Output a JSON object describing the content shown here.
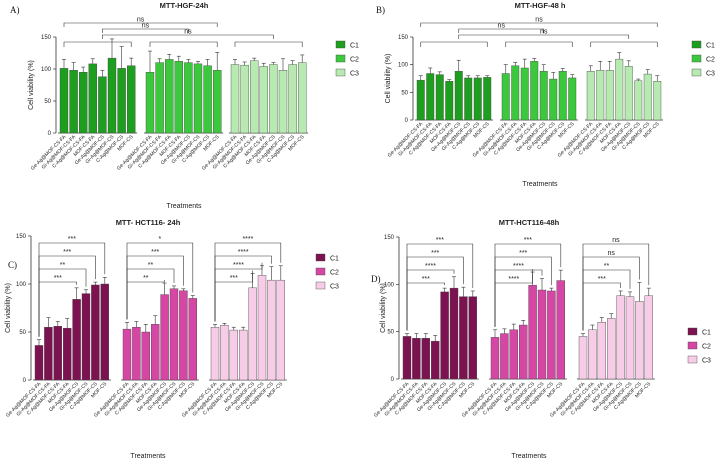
{
  "figure": {
    "ylabel": "Cell viability (%)",
    "xlabel": "Treatments",
    "categories": [
      [
        "Ge-Ag@MOF-CS-FA",
        "Gi-Ag@MOF-CS-FA",
        "C-Ag@MOF-CS-FA",
        "MOF-CS-FA",
        "Ge-Ag@MOF-CS",
        "Gi-Ag@MOF-CS",
        "C-Ag@MOF-CS",
        "MOF-CS"
      ],
      [
        "Ge-Ag@MOF-CS-FA",
        "Gi-Ag@MOF-CS-FA",
        "C-Ag@MOF-CS-FA",
        "MOF-CS-FA",
        "Ge-Ag@MOF-CS",
        "Gi-Ag@MOF-CS",
        "C-Ag@MOF-CS",
        "MOF-CS"
      ],
      [
        "Ge-Ag@MOF-CS-FA",
        "Gi-Ag@MOF-CS-FA",
        "C-Ag@MOF-CS-FA",
        "MOF-CS-FA",
        "Ge-Ag@MOF-CS",
        "Gi-Ag@MOF-CS",
        "C-Ag@MOF-CS",
        "MOF-CS"
      ],
      [
        "Ge-Ag@MOF-CS-FA",
        "Gi-Ag@MOF-CS-FA",
        "C-Ag@MOF-CS-FA",
        "MOF-CS-FA",
        "Ge-Ag@MOF-CS",
        "Gi-Ag@MOF-CS",
        "C-Ag@MOF-CS",
        "MOF-CS"
      ]
    ]
  },
  "chart_data": [
    {
      "type": "bar",
      "panel_label": "A)",
      "title": "MTT-HGF-24h",
      "xlabel": "Treatments",
      "ylabel": "Cell viability (%)",
      "ylim": [
        0,
        150
      ],
      "yticks": [
        0,
        50,
        100,
        150
      ],
      "legend": [
        "C1",
        "C2",
        "C3"
      ],
      "colors": [
        "#1e9e1e",
        "#3cc83c",
        "#b6eab0"
      ],
      "series": [
        {
          "name": "C1",
          "values": [
            101,
            98,
            95,
            108,
            88,
            117,
            101,
            105
          ],
          "errors": [
            14,
            12,
            8,
            8,
            10,
            30,
            34,
            12
          ]
        },
        {
          "name": "C2",
          "values": [
            95,
            110,
            115,
            112,
            110,
            108,
            105,
            98
          ],
          "errors": [
            33,
            6,
            8,
            8,
            5,
            4,
            10,
            28
          ]
        },
        {
          "name": "C3",
          "values": [
            107,
            106,
            113,
            104,
            107,
            98,
            107,
            110
          ],
          "errors": [
            8,
            5,
            4,
            5,
            3,
            18,
            6,
            12
          ]
        }
      ],
      "significance": [
        {
          "from": [
            0,
            0
          ],
          "to": [
            1,
            7
          ],
          "label": "ns"
        },
        {
          "from": [
            0,
            4
          ],
          "to": [
            1,
            4
          ],
          "label": "ns"
        },
        {
          "from": [
            0,
            4
          ],
          "to": [
            2,
            4
          ],
          "label": "ns"
        }
      ]
    },
    {
      "type": "bar",
      "panel_label": "B)",
      "title": "MTT-HGF-48 h",
      "xlabel": "Treatments",
      "ylabel": "Cell viability (%)",
      "ylim": [
        0,
        150
      ],
      "yticks": [
        0,
        50,
        100,
        150
      ],
      "legend": [
        "C1",
        "C2",
        "C3"
      ],
      "colors": [
        "#1e9e1e",
        "#3cc83c",
        "#b6eab0"
      ],
      "series": [
        {
          "name": "C1",
          "values": [
            72,
            84,
            82,
            70,
            88,
            76,
            76,
            77
          ],
          "errors": [
            8,
            10,
            5,
            3,
            20,
            4,
            4,
            3
          ]
        },
        {
          "name": "C2",
          "values": [
            84,
            98,
            94,
            106,
            88,
            74,
            88,
            76
          ],
          "errors": [
            16,
            6,
            16,
            5,
            12,
            12,
            5,
            6
          ]
        },
        {
          "name": "C3",
          "values": [
            88,
            90,
            90,
            110,
            97,
            71,
            83,
            70
          ],
          "errors": [
            10,
            16,
            16,
            12,
            10,
            3,
            8,
            10
          ]
        }
      ],
      "significance": [
        {
          "from": [
            0,
            0
          ],
          "to": [
            2,
            7
          ],
          "label": "ns"
        },
        {
          "from": [
            0,
            4
          ],
          "to": [
            1,
            4
          ],
          "label": "ns"
        },
        {
          "from": [
            0,
            4
          ],
          "to": [
            2,
            4
          ],
          "label": "ns"
        }
      ]
    },
    {
      "type": "bar",
      "panel_label": "C)",
      "title": "MTT- HCT116- 24h",
      "xlabel": "Treatments",
      "ylabel": "Cell viability (%)",
      "ylim": [
        0,
        150
      ],
      "yticks": [
        0,
        50,
        100,
        150
      ],
      "legend": [
        "C1",
        "C2",
        "C3"
      ],
      "colors": [
        "#7d1250",
        "#d646a4",
        "#f6cce6"
      ],
      "series": [
        {
          "name": "C1",
          "values": [
            36,
            55,
            56,
            54,
            84,
            90,
            99,
            100
          ],
          "errors": [
            6,
            10,
            5,
            10,
            12,
            4,
            3,
            7
          ]
        },
        {
          "name": "C2",
          "values": [
            53,
            55,
            50,
            58,
            89,
            95,
            93,
            85
          ],
          "errors": [
            7,
            6,
            8,
            9,
            12,
            3,
            2,
            3
          ]
        },
        {
          "name": "C3",
          "values": [
            55,
            57,
            52,
            52,
            96,
            109,
            104,
            104
          ],
          "errors": [
            3,
            2,
            3,
            3,
            15,
            10,
            14,
            15
          ]
        }
      ],
      "significance": [
        {
          "from": [
            0,
            0
          ],
          "to": [
            0,
            4
          ],
          "label": "***"
        },
        {
          "from": [
            0,
            0
          ],
          "to": [
            0,
            5
          ],
          "label": "**"
        },
        {
          "from": [
            0,
            0
          ],
          "to": [
            0,
            6
          ],
          "label": "***"
        },
        {
          "from": [
            0,
            0
          ],
          "to": [
            0,
            7
          ],
          "label": "***"
        },
        {
          "from": [
            1,
            0
          ],
          "to": [
            1,
            4
          ],
          "label": "**"
        },
        {
          "from": [
            1,
            0
          ],
          "to": [
            1,
            5
          ],
          "label": "**"
        },
        {
          "from": [
            1,
            0
          ],
          "to": [
            1,
            6
          ],
          "label": "***"
        },
        {
          "from": [
            1,
            0
          ],
          "to": [
            1,
            7
          ],
          "label": "*"
        },
        {
          "from": [
            2,
            0
          ],
          "to": [
            2,
            4
          ],
          "label": "***"
        },
        {
          "from": [
            2,
            0
          ],
          "to": [
            2,
            5
          ],
          "label": "****"
        },
        {
          "from": [
            2,
            0
          ],
          "to": [
            2,
            6
          ],
          "label": "****"
        },
        {
          "from": [
            2,
            0
          ],
          "to": [
            2,
            7
          ],
          "label": "****"
        }
      ]
    },
    {
      "type": "bar",
      "panel_label": "D)",
      "title": "MTT-HCT116-48h",
      "xlabel": "Treatments",
      "ylabel": "Cell viability (%)",
      "ylim": [
        0,
        150
      ],
      "yticks": [
        0,
        50,
        100,
        150
      ],
      "legend": [
        "C1",
        "C2",
        "C3"
      ],
      "colors": [
        "#7d1250",
        "#d646a4",
        "#f6cce6"
      ],
      "series": [
        {
          "name": "C1",
          "values": [
            45,
            43,
            43,
            40,
            92,
            96,
            87,
            87
          ],
          "errors": [
            3,
            5,
            5,
            6,
            4,
            12,
            10,
            6
          ]
        },
        {
          "name": "C2",
          "values": [
            44,
            48,
            52,
            57,
            99,
            94,
            93,
            104
          ],
          "errors": [
            8,
            5,
            6,
            5,
            14,
            12,
            3,
            11
          ]
        },
        {
          "name": "C3",
          "values": [
            45,
            52,
            60,
            64,
            88,
            87,
            82,
            88
          ],
          "errors": [
            3,
            5,
            5,
            5,
            5,
            5,
            20,
            8
          ]
        }
      ],
      "significance": [
        {
          "from": [
            0,
            0
          ],
          "to": [
            0,
            4
          ],
          "label": "***"
        },
        {
          "from": [
            0,
            0
          ],
          "to": [
            0,
            5
          ],
          "label": "****"
        },
        {
          "from": [
            0,
            0
          ],
          "to": [
            0,
            6
          ],
          "label": "***"
        },
        {
          "from": [
            0,
            0
          ],
          "to": [
            0,
            7
          ],
          "label": "***"
        },
        {
          "from": [
            1,
            0
          ],
          "to": [
            1,
            4
          ],
          "label": "****"
        },
        {
          "from": [
            1,
            0
          ],
          "to": [
            1,
            5
          ],
          "label": "****"
        },
        {
          "from": [
            1,
            0
          ],
          "to": [
            1,
            6
          ],
          "label": "***"
        },
        {
          "from": [
            1,
            0
          ],
          "to": [
            1,
            7
          ],
          "label": "***"
        },
        {
          "from": [
            2,
            0
          ],
          "to": [
            2,
            4
          ],
          "label": "***"
        },
        {
          "from": [
            2,
            0
          ],
          "to": [
            2,
            5
          ],
          "label": "**"
        },
        {
          "from": [
            2,
            0
          ],
          "to": [
            2,
            6
          ],
          "label": "ns"
        },
        {
          "from": [
            2,
            0
          ],
          "to": [
            2,
            7
          ],
          "label": "ns"
        }
      ]
    }
  ]
}
